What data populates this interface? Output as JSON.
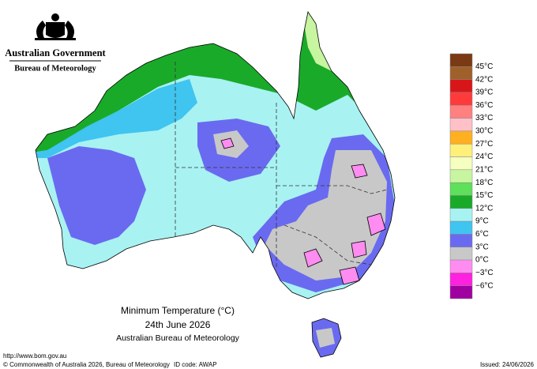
{
  "header": {
    "agency": "Australian Government",
    "bureau": "Bureau of Meteorology"
  },
  "legend": {
    "labels": [
      "45°C",
      "42°C",
      "39°C",
      "36°C",
      "33°C",
      "30°C",
      "27°C",
      "24°C",
      "21°C",
      "18°C",
      "15°C",
      "12°C",
      "9°C",
      "6°C",
      "3°C",
      "0°C",
      "−3°C",
      "−6°C"
    ],
    "colors": [
      "#7a3a14",
      "#a0602a",
      "#d8161a",
      "#ff3a3a",
      "#ff8080",
      "#ffc0c8",
      "#ffb020",
      "#fff07a",
      "#f4ffc0",
      "#c8f5a0",
      "#5ee05a",
      "#1aaa2a",
      "#a8f2f2",
      "#40c4f0",
      "#6a6af0",
      "#c8c8c8",
      "#ff8cf0",
      "#ff20e0",
      "#a000a0"
    ]
  },
  "map": {
    "title": "Minimum Temperature (°C)",
    "date": "24th June 2026",
    "source": "Australian Bureau of Meteorology"
  },
  "footer": {
    "url": "http://www.bom.gov.au",
    "copyright": "© Commonwealth of Australia 2026, Bureau of Meteorology",
    "id_code": "ID code: AWAP",
    "issued": "Issued: 24/06/2026"
  }
}
